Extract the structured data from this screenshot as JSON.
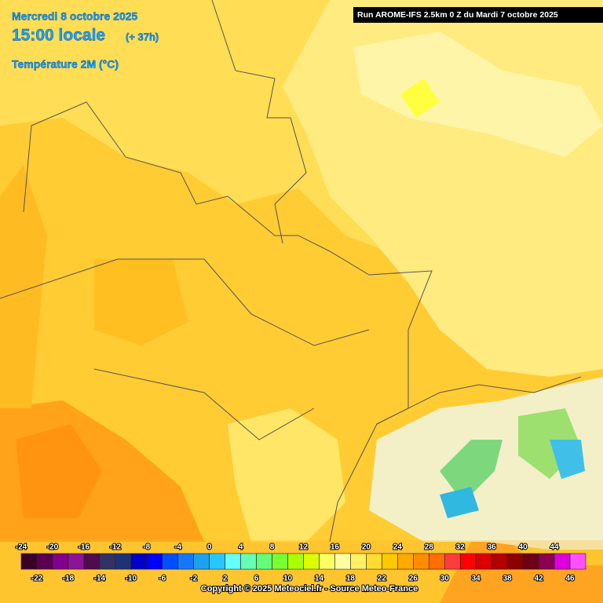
{
  "header": {
    "date": "Mercredi 8 octobre 2025",
    "time": "15:00 locale",
    "lead": "(+ 37h)",
    "variable": "Température 2M (°C)"
  },
  "run": "Run AROME-IFS 2.5km 0 Z du Mardi 7 octobre 2025",
  "legend": {
    "labels": [
      -24,
      -22,
      -20,
      -18,
      -16,
      -14,
      -12,
      -10,
      -8,
      -6,
      -4,
      -2,
      0,
      2,
      4,
      6,
      8,
      10,
      12,
      14,
      16,
      18,
      20,
      22,
      24,
      26,
      28,
      30,
      32,
      34,
      36,
      38,
      40,
      42,
      44,
      46
    ],
    "colors": [
      "#3c0028",
      "#5a0050",
      "#82008c",
      "#8c1496",
      "#500a50",
      "#323264",
      "#1e3278",
      "#0000c8",
      "#0000ff",
      "#0050ff",
      "#1478ff",
      "#1ea0f0",
      "#28c8ff",
      "#64ffff",
      "#64ffb4",
      "#64ff78",
      "#78ff32",
      "#aaff00",
      "#dcff00",
      "#ffff64",
      "#ffffa0",
      "#fff064",
      "#ffdc32",
      "#ffc800",
      "#ffaa00",
      "#ff8c00",
      "#ff6e00",
      "#ff3c3c",
      "#ff0000",
      "#dc0000",
      "#b40000",
      "#8c0000",
      "#6e0014",
      "#8c0050",
      "#dc00dc",
      "#ff50ff"
    ]
  },
  "copyright": "Copyright © 2025 Meteociel.fr - Source Meteo-France"
}
